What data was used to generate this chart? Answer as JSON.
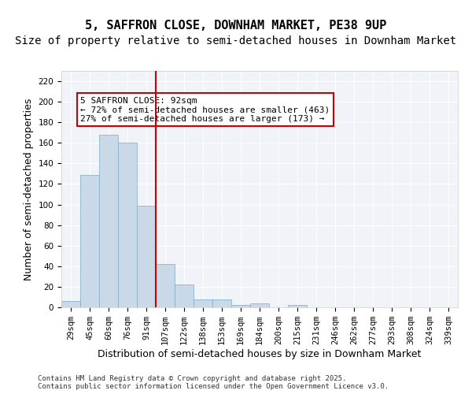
{
  "title": "5, SAFFRON CLOSE, DOWNHAM MARKET, PE38 9UP",
  "subtitle": "Size of property relative to semi-detached houses in Downham Market",
  "xlabel": "Distribution of semi-detached houses by size in Downham Market",
  "ylabel": "Number of semi-detached properties",
  "categories": [
    "29sqm",
    "45sqm",
    "60sqm",
    "76sqm",
    "91sqm",
    "107sqm",
    "122sqm",
    "138sqm",
    "153sqm",
    "169sqm",
    "184sqm",
    "200sqm",
    "215sqm",
    "231sqm",
    "246sqm",
    "262sqm",
    "277sqm",
    "293sqm",
    "308sqm",
    "324sqm",
    "339sqm"
  ],
  "values": [
    6,
    129,
    168,
    160,
    99,
    42,
    22,
    8,
    8,
    2,
    4,
    0,
    2,
    0,
    0,
    0,
    0,
    0,
    0,
    0,
    0
  ],
  "bar_color": "#c9d9e8",
  "bar_edge_color": "#7aaac8",
  "vline_x": 4,
  "vline_color": "#cc0000",
  "annotation_text": "5 SAFFRON CLOSE: 92sqm\n← 72% of semi-detached houses are smaller (463)\n27% of semi-detached houses are larger (173) →",
  "annotation_box_color": "#cc0000",
  "background_color": "#f0f4f8",
  "grid_color": "#ffffff",
  "ylim": [
    0,
    230
  ],
  "yticks": [
    0,
    20,
    40,
    60,
    80,
    100,
    120,
    140,
    160,
    180,
    200,
    220
  ],
  "footer": "Contains HM Land Registry data © Crown copyright and database right 2025.\nContains public sector information licensed under the Open Government Licence v3.0.",
  "title_fontsize": 11,
  "subtitle_fontsize": 10,
  "xlabel_fontsize": 9,
  "ylabel_fontsize": 9,
  "tick_fontsize": 7.5,
  "annotation_fontsize": 8,
  "footer_fontsize": 6.5
}
